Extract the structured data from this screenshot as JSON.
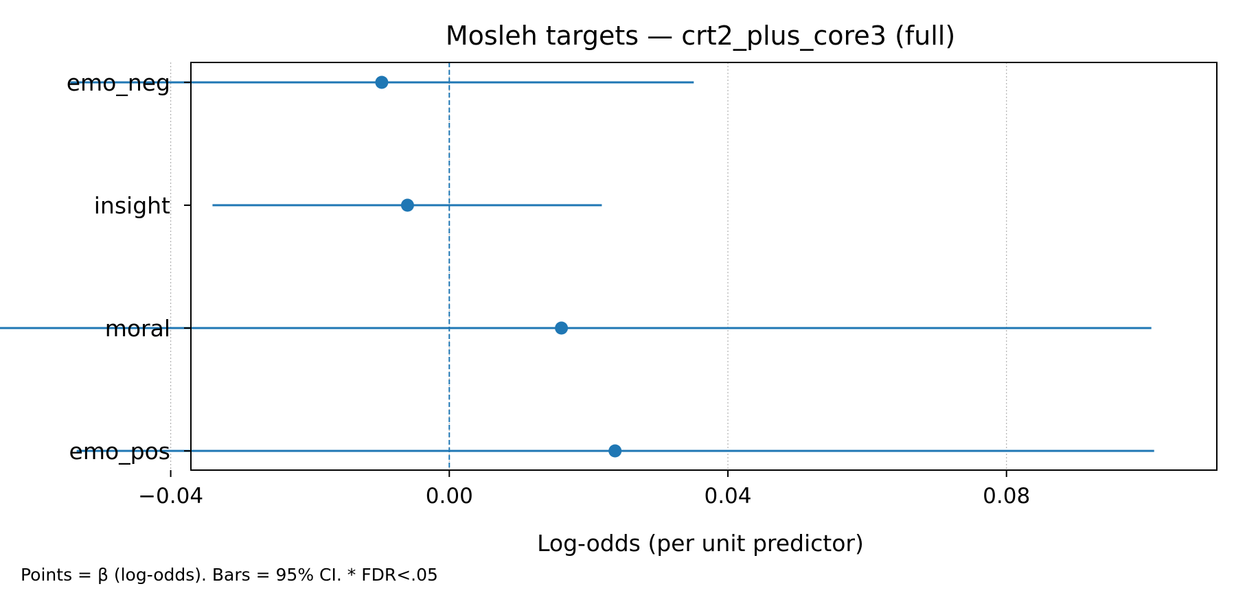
{
  "chart_data": {
    "type": "forest",
    "title": "Mosleh targets — crt2_plus_core3 (full)",
    "xlabel": "Log-odds (per unit predictor)",
    "ylabel": "",
    "xlim": [
      -0.0371,
      0.1102
    ],
    "x_ticks": [
      -0.04,
      0.0,
      0.04,
      0.08
    ],
    "x_tick_labels": [
      "−0.04",
      "0.00",
      "0.04",
      "0.08"
    ],
    "reference_line": 0.0,
    "grid": "x-dotted",
    "color": "#1f77b4",
    "categories": [
      "emo_neg",
      "insight",
      "moral",
      "emo_pos"
    ],
    "estimates": [
      {
        "label": "emo_neg",
        "beta": -0.0097,
        "ci_low": -0.0544,
        "ci_high": 0.0351
      },
      {
        "label": "insight",
        "beta": -0.006,
        "ci_low": -0.034,
        "ci_high": 0.0219
      },
      {
        "label": "moral",
        "beta": 0.0161,
        "ci_low": -0.0685,
        "ci_high": 0.1008
      },
      {
        "label": "emo_pos",
        "beta": 0.0238,
        "ci_low": -0.0535,
        "ci_high": 0.1012
      }
    ],
    "footnote": "Points = β (log-odds). Bars = 95% CI. * FDR<.05"
  }
}
